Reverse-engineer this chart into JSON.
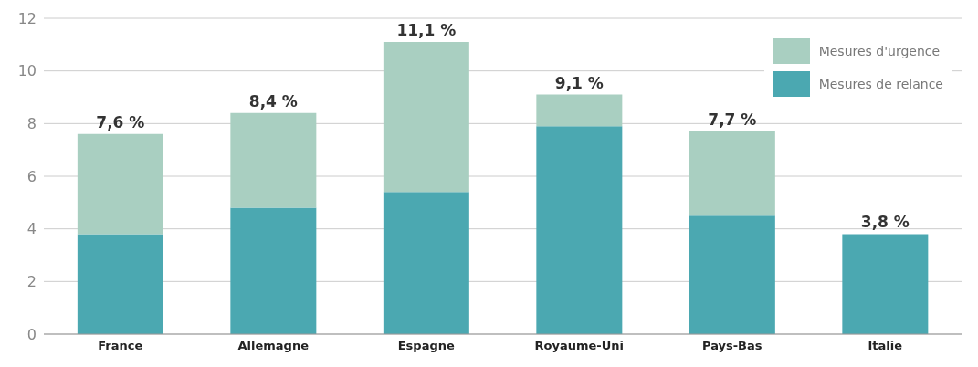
{
  "chart_data": {
    "type": "bar",
    "stacked": true,
    "categories": [
      "France",
      "Allemagne",
      "Espagne",
      "Royaume-Uni",
      "Pays-Bas",
      "Italie"
    ],
    "series": [
      {
        "name": "Mesures de relance",
        "color": "#4ba8b1",
        "values": [
          3.8,
          4.8,
          5.4,
          7.9,
          4.5,
          3.8
        ]
      },
      {
        "name": "Mesures d'urgence",
        "color": "#a9cfc1",
        "values": [
          3.8,
          3.6,
          5.7,
          1.2,
          3.2,
          0
        ]
      }
    ],
    "totals": [
      "7,6 %",
      "8,4 %",
      "11,1 %",
      "9,1 %",
      "7,7 %",
      "3,8 %"
    ],
    "ylim": [
      0,
      12
    ],
    "yticks": [
      0,
      2,
      4,
      6,
      8,
      10,
      12
    ],
    "grid": "y",
    "legend": "top right"
  }
}
